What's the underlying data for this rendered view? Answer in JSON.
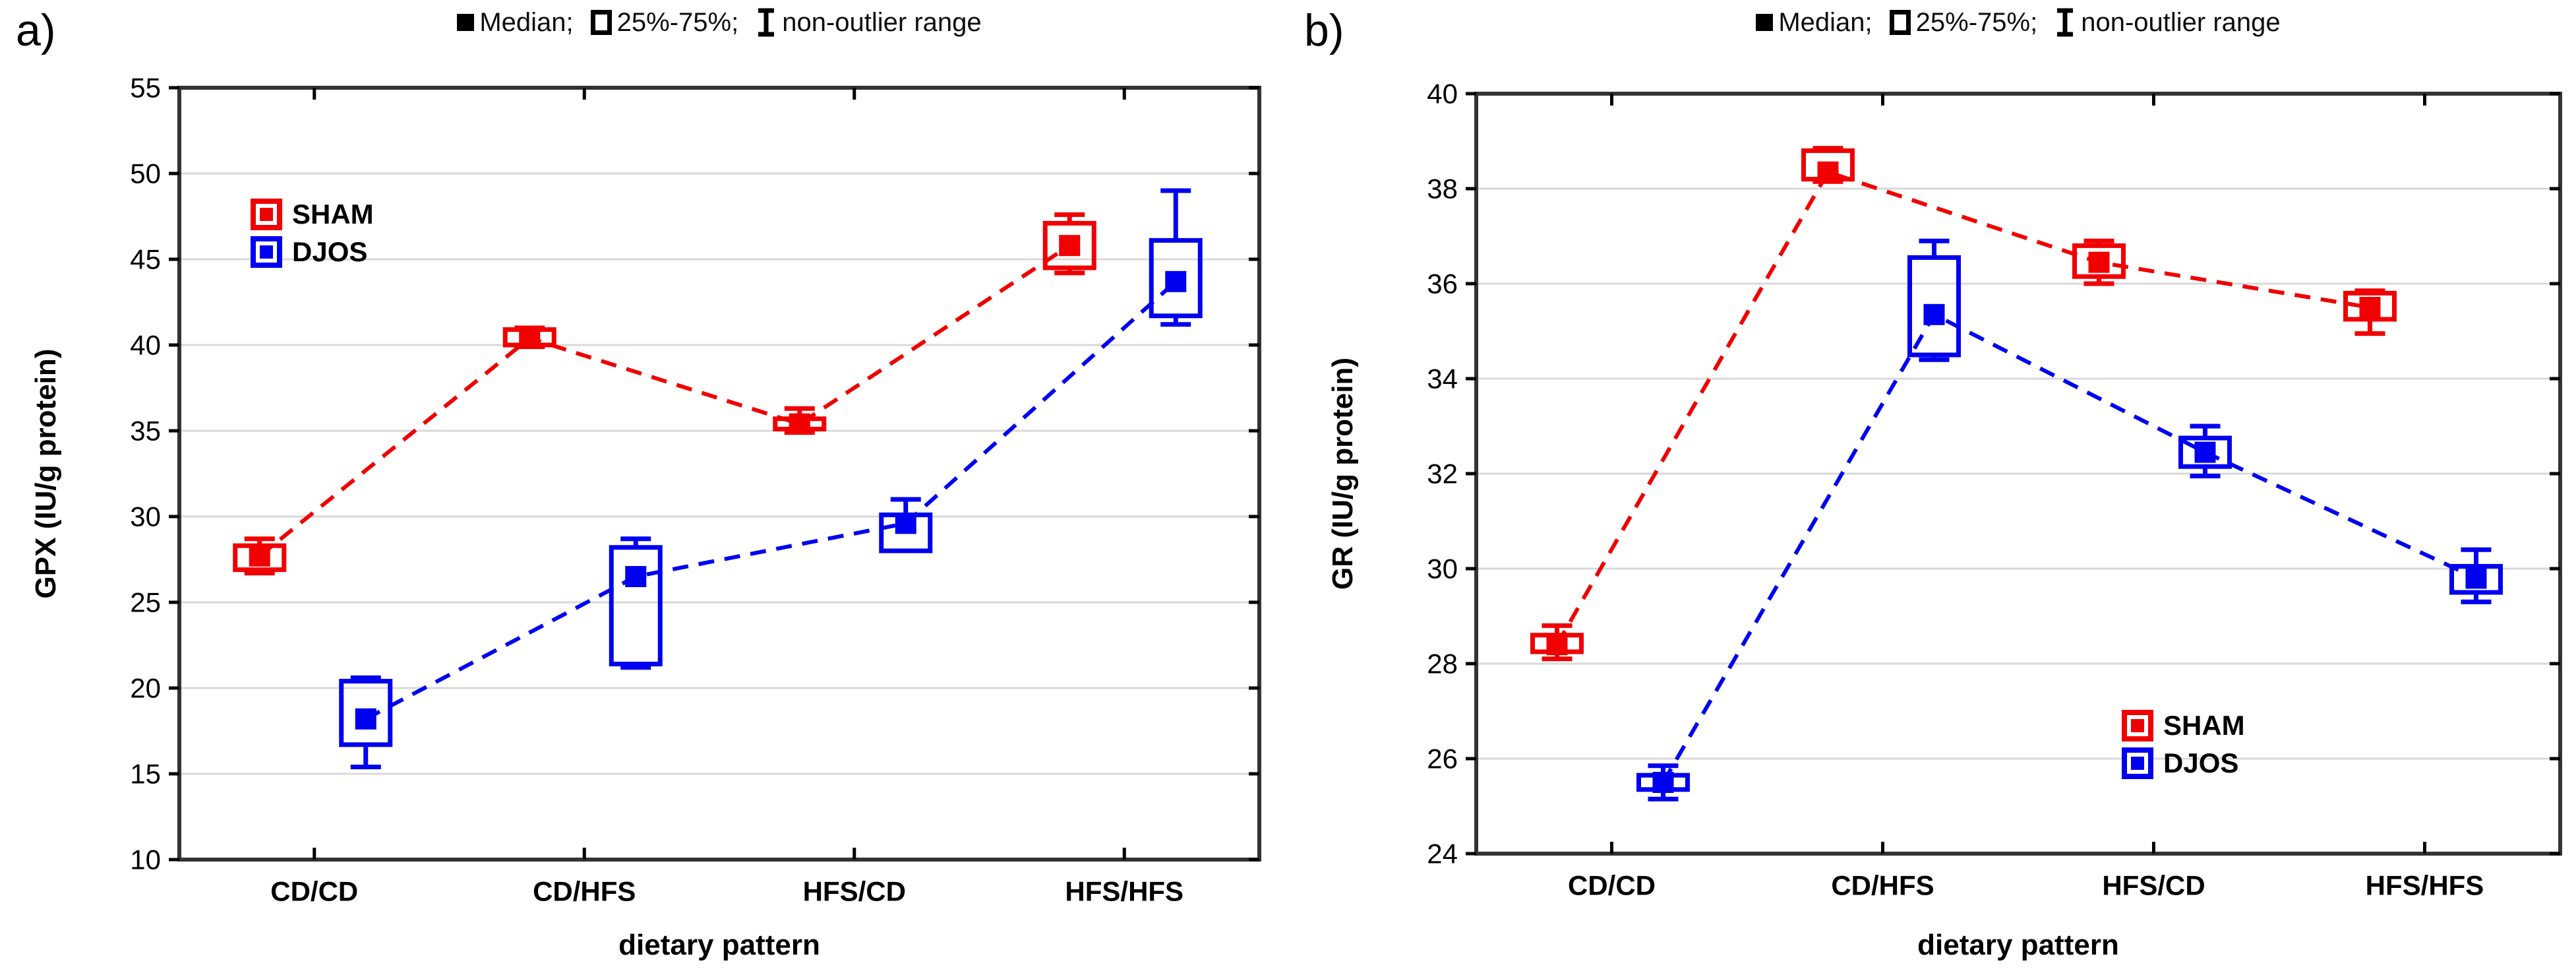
{
  "chart_data": [
    {
      "type": "box",
      "panel_label": "a)",
      "legend": {
        "median_label": "Median;",
        "iqr_label": "25%-75%;",
        "range_label": "non-outlier range"
      },
      "ylabel": "GPX (IU/g protein)",
      "xlabel": "dietary pattern",
      "ylim": [
        10,
        55
      ],
      "ystep": 5,
      "grid": "horizontal",
      "categories": [
        "CD/CD",
        "CD/HFS",
        "HFS/CD",
        "HFS/HFS"
      ],
      "series": [
        {
          "name": "SHAM",
          "color": "#f00000",
          "points": [
            {
              "median": 27.7,
              "q1": 26.9,
              "q3": 28.3,
              "whisker_low": 26.7,
              "whisker_high": 28.7
            },
            {
              "median": 40.4,
              "q1": 40.0,
              "q3": 40.9,
              "whisker_low": 39.9,
              "whisker_high": 41.0
            },
            {
              "median": 35.4,
              "q1": 35.1,
              "q3": 35.7,
              "whisker_low": 34.9,
              "whisker_high": 36.3
            },
            {
              "median": 45.8,
              "q1": 44.5,
              "q3": 47.1,
              "whisker_low": 44.2,
              "whisker_high": 47.6
            }
          ]
        },
        {
          "name": "DJOS",
          "color": "#0000f0",
          "points": [
            {
              "median": 18.2,
              "q1": 16.7,
              "q3": 20.4,
              "whisker_low": 15.4,
              "whisker_high": 20.6
            },
            {
              "median": 26.5,
              "q1": 21.4,
              "q3": 28.2,
              "whisker_low": 21.2,
              "whisker_high": 28.7
            },
            {
              "median": 29.6,
              "q1": 28.0,
              "q3": 30.1,
              "whisker_low": 28.0,
              "whisker_high": 31.0
            },
            {
              "median": 43.7,
              "q1": 41.7,
              "q3": 46.1,
              "whisker_low": 41.2,
              "whisker_high": 49.0
            }
          ]
        }
      ]
    },
    {
      "type": "box",
      "panel_label": "b)",
      "legend": {
        "median_label": "Median;",
        "iqr_label": "25%-75%;",
        "range_label": "non-outlier range"
      },
      "ylabel": "GR (IU/g protein)",
      "xlabel": "dietary pattern",
      "ylim": [
        24,
        40
      ],
      "ystep": 2,
      "grid": "horizontal",
      "categories": [
        "CD/CD",
        "CD/HFS",
        "HFS/CD",
        "HFS/HFS"
      ],
      "series": [
        {
          "name": "SHAM",
          "color": "#f00000",
          "points": [
            {
              "median": 28.4,
              "q1": 28.25,
              "q3": 28.6,
              "whisker_low": 28.1,
              "whisker_high": 28.8
            },
            {
              "median": 38.35,
              "q1": 38.2,
              "q3": 38.8,
              "whisker_low": 38.15,
              "whisker_high": 38.85
            },
            {
              "median": 36.45,
              "q1": 36.15,
              "q3": 36.8,
              "whisker_low": 36.0,
              "whisker_high": 36.9
            },
            {
              "median": 35.5,
              "q1": 35.25,
              "q3": 35.8,
              "whisker_low": 34.95,
              "whisker_high": 35.85
            }
          ]
        },
        {
          "name": "DJOS",
          "color": "#0000f0",
          "points": [
            {
              "median": 25.5,
              "q1": 25.35,
              "q3": 25.65,
              "whisker_low": 25.15,
              "whisker_high": 25.85
            },
            {
              "median": 35.35,
              "q1": 34.5,
              "q3": 36.55,
              "whisker_low": 34.4,
              "whisker_high": 36.9
            },
            {
              "median": 32.45,
              "q1": 32.15,
              "q3": 32.75,
              "whisker_low": 31.95,
              "whisker_high": 33.0
            },
            {
              "median": 29.8,
              "q1": 29.5,
              "q3": 30.05,
              "whisker_low": 29.3,
              "whisker_high": 30.4
            }
          ]
        }
      ]
    }
  ]
}
